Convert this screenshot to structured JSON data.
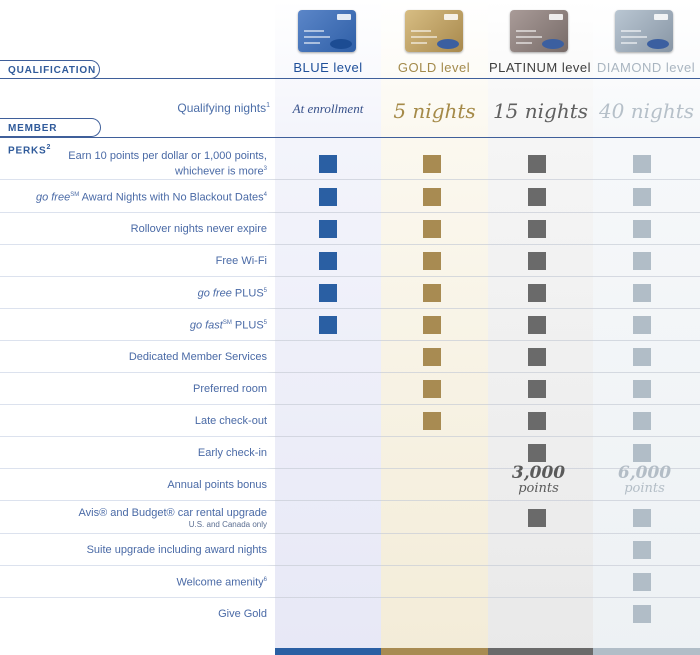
{
  "tiers": [
    {
      "id": "blue",
      "level_label": "BLUE level",
      "color": "#1f4f99",
      "qualifying": "At enrollment",
      "card_color": "#3f6fb8"
    },
    {
      "id": "gold",
      "level_label": "GOLD level",
      "color": "#a38a4b",
      "qualifying": "5 nights",
      "card_color": "#b7975a"
    },
    {
      "id": "platinum",
      "level_label": "PLATINUM level",
      "color": "#3d3d3d",
      "qualifying": "15 nights",
      "card_color": "#8b7f7c"
    },
    {
      "id": "diamond",
      "level_label": "DIAMOND level",
      "color": "#a9b5c0",
      "qualifying": "40 nights",
      "card_color": "#9aa7b4"
    }
  ],
  "sections": {
    "qualification": "QUALIFICATION",
    "member_perks": "MEMBER PERKS",
    "member_perks_note": "2"
  },
  "qualifying_nights": {
    "label": "Qualifying nights",
    "note": "1"
  },
  "perks": [
    {
      "label_line1": "Earn 10 points per dollar or 1,000 points,",
      "label_line2": "whichever is more",
      "note": "3",
      "blue": true,
      "gold": true,
      "platinum": true,
      "diamond": true
    },
    {
      "label_prefix": "go free",
      "label_sm": "SM",
      "label_rest": " Award Nights with No Blackout Dates",
      "note": "4",
      "blue": true,
      "gold": true,
      "platinum": true,
      "diamond": true
    },
    {
      "label": "Rollover nights never expire",
      "blue": true,
      "gold": true,
      "platinum": true,
      "diamond": true
    },
    {
      "label": "Free Wi-Fi",
      "blue": true,
      "gold": true,
      "platinum": true,
      "diamond": true
    },
    {
      "label_prefix": "go free",
      "label_rest": " PLUS",
      "note": "5",
      "blue": true,
      "gold": true,
      "platinum": true,
      "diamond": true
    },
    {
      "label_prefix": "go fast",
      "label_sm": "SM",
      "label_rest": " PLUS",
      "note": "5",
      "blue": true,
      "gold": true,
      "platinum": true,
      "diamond": true
    },
    {
      "label": "Dedicated Member Services",
      "blue": false,
      "gold": true,
      "platinum": true,
      "diamond": true
    },
    {
      "label": "Preferred room",
      "blue": false,
      "gold": true,
      "platinum": true,
      "diamond": true
    },
    {
      "label": "Late check-out",
      "blue": false,
      "gold": true,
      "platinum": true,
      "diamond": true
    },
    {
      "label": "Early check-in",
      "blue": false,
      "gold": false,
      "platinum": true,
      "diamond": true
    },
    {
      "label": "Annual points bonus",
      "platinum_value": "3,000",
      "diamond_value": "6,000",
      "unit": "points"
    },
    {
      "label_line1": "Avis® and Budget® car rental upgrade",
      "label_line2": "U.S. and Canada only",
      "blue": false,
      "gold": false,
      "platinum": true,
      "diamond": true
    },
    {
      "label": "Suite upgrade including award nights",
      "blue": false,
      "gold": false,
      "platinum": false,
      "diamond": true
    },
    {
      "label": "Welcome amenity",
      "note": "6",
      "blue": false,
      "gold": false,
      "platinum": false,
      "diamond": true
    },
    {
      "label": "Give Gold",
      "blue": false,
      "gold": false,
      "platinum": false,
      "diamond": true
    }
  ]
}
